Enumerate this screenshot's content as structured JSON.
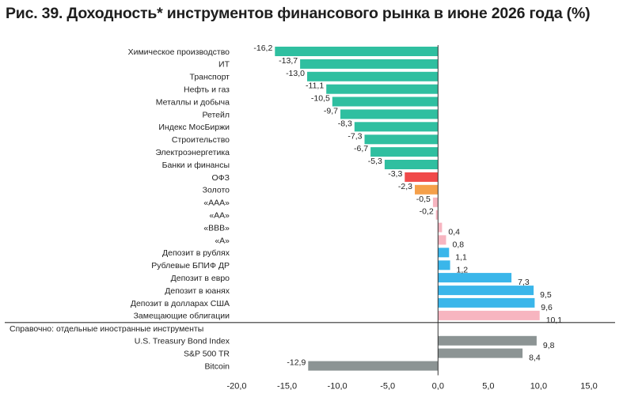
{
  "title": "Рис. 39. Доходность* инструментов финансового рынка в июне 2026 года (%)",
  "colors": {
    "teal": "#2fbfa0",
    "red": "#f04a4a",
    "orange": "#f5a04a",
    "pink": "#f7b5c0",
    "blue": "#3ab6ea",
    "gray": "#8c9494",
    "axis": "#333333"
  },
  "chart_data": {
    "type": "bar",
    "orientation": "horizontal",
    "xlim": [
      -20,
      15
    ],
    "xticks": [
      -20,
      -15,
      -10,
      -5,
      0,
      5,
      10,
      15
    ],
    "xtick_labels": [
      "-20,0",
      "-15,0",
      "-10,0",
      "-5,0",
      "0,0",
      "5,0",
      "10,0",
      "15,0"
    ],
    "grid": false,
    "section_label": "Справочно: отдельные иностранные инструменты",
    "bars": [
      {
        "label": "Химическое производство",
        "value": -16.2,
        "value_label": "-16,2",
        "color": "teal"
      },
      {
        "label": "ИТ",
        "value": -13.7,
        "value_label": "-13,7",
        "color": "teal"
      },
      {
        "label": "Транспорт",
        "value": -13.0,
        "value_label": "-13,0",
        "color": "teal"
      },
      {
        "label": "Нефть и газ",
        "value": -11.1,
        "value_label": "-11,1",
        "color": "teal"
      },
      {
        "label": "Металлы и добыча",
        "value": -10.5,
        "value_label": "-10,5",
        "color": "teal"
      },
      {
        "label": "Ретейл",
        "value": -9.7,
        "value_label": "-9,7",
        "color": "teal"
      },
      {
        "label": "Индекс МосБиржи",
        "value": -8.3,
        "value_label": "-8,3",
        "color": "teal"
      },
      {
        "label": "Строительство",
        "value": -7.3,
        "value_label": "-7,3",
        "color": "teal"
      },
      {
        "label": "Электроэнергетика",
        "value": -6.7,
        "value_label": "-6,7",
        "color": "teal"
      },
      {
        "label": "Банки и финансы",
        "value": -5.3,
        "value_label": "-5,3",
        "color": "teal"
      },
      {
        "label": "ОФЗ",
        "value": -3.3,
        "value_label": "-3,3",
        "color": "red"
      },
      {
        "label": "Золото",
        "value": -2.3,
        "value_label": "-2,3",
        "color": "orange"
      },
      {
        "label": "«ААА»",
        "value": -0.5,
        "value_label": "-0,5",
        "color": "pink"
      },
      {
        "label": "«АА»",
        "value": -0.2,
        "value_label": "-0,2",
        "color": "pink"
      },
      {
        "label": "«ВВВ»",
        "value": 0.4,
        "value_label": "0,4",
        "color": "pink"
      },
      {
        "label": "«А»",
        "value": 0.8,
        "value_label": "0,8",
        "color": "pink"
      },
      {
        "label": "Депозит в рублях",
        "value": 1.1,
        "value_label": "1,1",
        "color": "blue"
      },
      {
        "label": "Рублевые БПИФ ДР",
        "value": 1.2,
        "value_label": "1,2",
        "color": "blue"
      },
      {
        "label": "Депозит в евро",
        "value": 7.3,
        "value_label": "7,3",
        "color": "blue"
      },
      {
        "label": "Депозит в юанях",
        "value": 9.5,
        "value_label": "9,5",
        "color": "blue"
      },
      {
        "label": "Депозит в долларах США",
        "value": 9.6,
        "value_label": "9,6",
        "color": "blue"
      },
      {
        "label": "Замещающие облигации",
        "value": 10.1,
        "value_label": "10,1",
        "color": "pink"
      },
      {
        "label": "U.S. Treasury Bond Index",
        "value": 9.8,
        "value_label": "9,8",
        "color": "gray",
        "section": "reference"
      },
      {
        "label": "S&P 500 TR",
        "value": 8.4,
        "value_label": "8,4",
        "color": "gray",
        "section": "reference"
      },
      {
        "label": "Bitcoin",
        "value": -12.9,
        "value_label": "-12,9",
        "color": "gray",
        "section": "reference"
      }
    ]
  }
}
